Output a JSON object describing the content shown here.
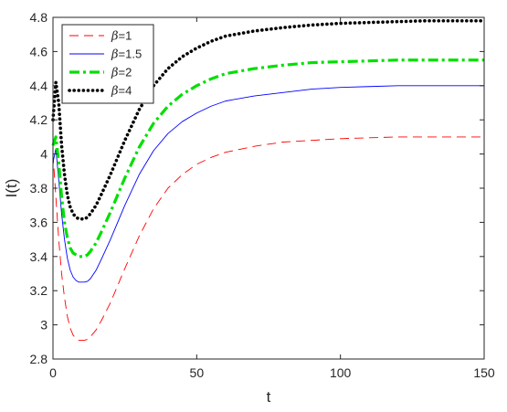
{
  "chart_data": {
    "type": "line",
    "xlabel": "t",
    "ylabel": "I(t)",
    "xlim": [
      0,
      150
    ],
    "ylim": [
      2.8,
      4.8
    ],
    "xticks": [
      "0",
      "50",
      "100",
      "150"
    ],
    "yticks": [
      "2.8",
      "3",
      "3.2",
      "3.4",
      "3.6",
      "3.8",
      "4",
      "4.2",
      "4.4",
      "4.6",
      "4.8"
    ],
    "grid": false,
    "legend_position": "top-left",
    "series": [
      {
        "name": "β=1",
        "legend_symbol": "β",
        "legend_value": "=1",
        "color": "#ff0000",
        "style": "dashed",
        "x": [
          0,
          1,
          2,
          3,
          4,
          5,
          6,
          7,
          8,
          9,
          10,
          11,
          12,
          13,
          15,
          17,
          20,
          25,
          30,
          35,
          40,
          45,
          50,
          55,
          60,
          70,
          80,
          90,
          100,
          110,
          120,
          130,
          140,
          150
        ],
        "y": [
          4.0,
          3.75,
          3.5,
          3.3,
          3.16,
          3.05,
          2.98,
          2.94,
          2.92,
          2.91,
          2.91,
          2.91,
          2.915,
          2.93,
          2.97,
          3.03,
          3.13,
          3.33,
          3.52,
          3.68,
          3.8,
          3.88,
          3.94,
          3.98,
          4.01,
          4.045,
          4.07,
          4.08,
          4.09,
          4.095,
          4.1,
          4.1,
          4.1,
          4.1
        ]
      },
      {
        "name": "β=1.5",
        "legend_symbol": "β",
        "legend_value": "=1.5",
        "color": "#0000ff",
        "style": "solid",
        "x": [
          0,
          1,
          2,
          3,
          4,
          5,
          6,
          7,
          8,
          9,
          10,
          11,
          12,
          13,
          15,
          17,
          20,
          25,
          30,
          35,
          40,
          45,
          50,
          55,
          60,
          70,
          80,
          90,
          100,
          110,
          120,
          130,
          140,
          150
        ],
        "y": [
          3.95,
          4.03,
          3.85,
          3.65,
          3.5,
          3.39,
          3.32,
          3.28,
          3.26,
          3.25,
          3.25,
          3.25,
          3.255,
          3.27,
          3.32,
          3.39,
          3.5,
          3.7,
          3.88,
          4.02,
          4.12,
          4.19,
          4.24,
          4.28,
          4.31,
          4.34,
          4.36,
          4.38,
          4.39,
          4.395,
          4.4,
          4.4,
          4.4,
          4.4
        ]
      },
      {
        "name": "β=2",
        "legend_symbol": "β",
        "legend_value": "=2",
        "color": "#00e000",
        "style": "dashdot",
        "x": [
          0,
          1,
          2,
          3,
          4,
          5,
          6,
          7,
          8,
          9,
          10,
          11,
          12,
          13,
          15,
          17,
          20,
          25,
          30,
          35,
          40,
          45,
          50,
          55,
          60,
          70,
          80,
          90,
          100,
          110,
          120,
          130,
          140,
          150
        ],
        "y": [
          4.05,
          4.1,
          3.95,
          3.75,
          3.6,
          3.51,
          3.45,
          3.42,
          3.41,
          3.4,
          3.4,
          3.4,
          3.41,
          3.43,
          3.48,
          3.55,
          3.66,
          3.86,
          4.04,
          4.18,
          4.28,
          4.35,
          4.4,
          4.44,
          4.47,
          4.5,
          4.52,
          4.535,
          4.54,
          4.545,
          4.55,
          4.55,
          4.55,
          4.55
        ]
      },
      {
        "name": "β=4",
        "legend_symbol": "β",
        "legend_value": "=4",
        "color": "#000000",
        "style": "dotted",
        "x": [
          0,
          1,
          2,
          3,
          4,
          5,
          6,
          7,
          8,
          9,
          10,
          11,
          12,
          13,
          15,
          17,
          20,
          25,
          30,
          35,
          40,
          45,
          50,
          55,
          60,
          70,
          80,
          90,
          100,
          110,
          120,
          130,
          140,
          150
        ],
        "y": [
          4.2,
          4.42,
          4.3,
          4.05,
          3.88,
          3.76,
          3.69,
          3.65,
          3.63,
          3.62,
          3.62,
          3.62,
          3.63,
          3.65,
          3.7,
          3.77,
          3.88,
          4.08,
          4.26,
          4.4,
          4.5,
          4.57,
          4.62,
          4.66,
          4.69,
          4.72,
          4.74,
          4.755,
          4.765,
          4.77,
          4.775,
          4.78,
          4.78,
          4.78
        ]
      }
    ]
  }
}
